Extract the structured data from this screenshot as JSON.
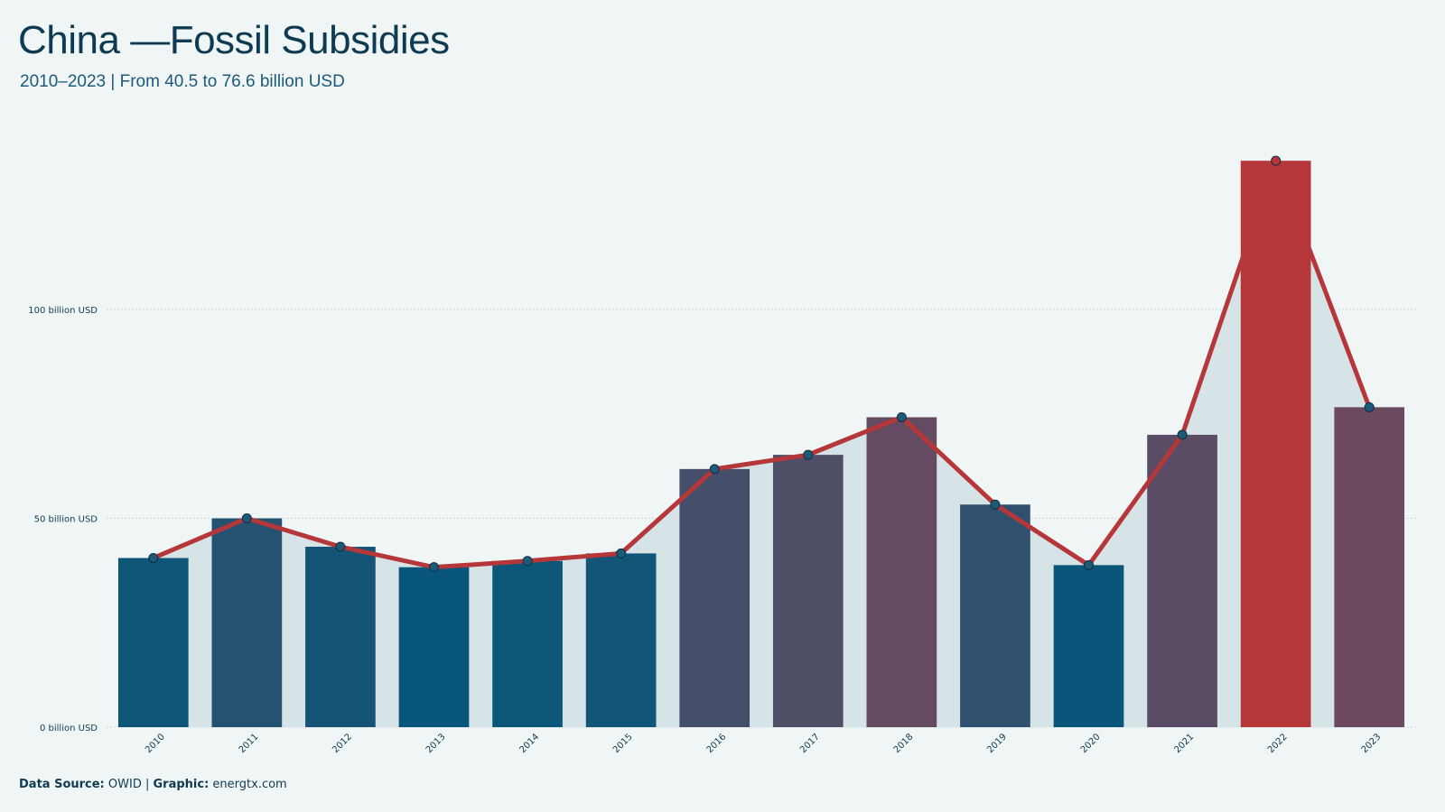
{
  "header": {
    "title": "China —Fossil Subsidies",
    "subtitle": "2010–2023 | From 40.5 to 76.6 billion  USD"
  },
  "footer": {
    "source_label": "Data  Source:",
    "source_value": "OWID",
    "separator": " | ",
    "graphic_label": "Graphic:",
    "graphic_value": "energtx.com"
  },
  "chart_data": {
    "type": "bar",
    "categories": [
      "2010",
      "2011",
      "2012",
      "2013",
      "2014",
      "2015",
      "2016",
      "2017",
      "2018",
      "2019",
      "2020",
      "2021",
      "2022",
      "2023"
    ],
    "values": [
      40.5,
      50.0,
      43.2,
      38.3,
      39.8,
      41.6,
      61.8,
      65.2,
      74.2,
      53.3,
      38.8,
      70.0,
      135.6,
      76.6
    ],
    "ylim": [
      0,
      140
    ],
    "yticks": [
      0,
      50,
      100
    ],
    "ytick_labels": [
      "0 billion USD",
      "50 billion USD",
      "100 billion USD"
    ],
    "grid": true,
    "overlay_line": true,
    "colors": {
      "line": "#b5373a",
      "area": "#d6e3e7",
      "low": "#08567a",
      "high": "#6b4a5f",
      "max": "#b5373a",
      "grid": "#c9d8d8",
      "marker_fill": "#1e5a78",
      "marker_stroke": "#0e2f40"
    }
  }
}
